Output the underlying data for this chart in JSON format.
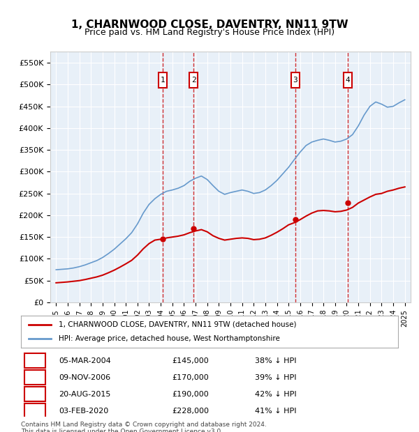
{
  "title": "1, CHARNWOOD CLOSE, DAVENTRY, NN11 9TW",
  "subtitle": "Price paid vs. HM Land Registry's House Price Index (HPI)",
  "ylabel": "",
  "background_color": "#ffffff",
  "plot_bg_color": "#e8f0f8",
  "grid_color": "#ffffff",
  "hpi_color": "#6699cc",
  "price_color": "#cc0000",
  "ylim": [
    0,
    575000
  ],
  "yticks": [
    0,
    50000,
    100000,
    150000,
    200000,
    250000,
    300000,
    350000,
    400000,
    450000,
    500000,
    550000
  ],
  "ytick_labels": [
    "£0",
    "£50K",
    "£100K",
    "£150K",
    "£200K",
    "£250K",
    "£300K",
    "£350K",
    "£400K",
    "£450K",
    "£500K",
    "£550K"
  ],
  "sale_dates": [
    "2004-03-05",
    "2006-11-09",
    "2015-08-20",
    "2020-02-03"
  ],
  "sale_prices": [
    145000,
    170000,
    190000,
    228000
  ],
  "sale_labels": [
    "1",
    "2",
    "3",
    "4"
  ],
  "sale_info": [
    {
      "label": "1",
      "date": "05-MAR-2004",
      "price": "£145,000",
      "pct": "38% ↓ HPI"
    },
    {
      "label": "2",
      "date": "09-NOV-2006",
      "price": "£170,000",
      "pct": "39% ↓ HPI"
    },
    {
      "label": "3",
      "date": "20-AUG-2015",
      "price": "£190,000",
      "pct": "42% ↓ HPI"
    },
    {
      "label": "4",
      "date": "03-FEB-2020",
      "price": "£228,000",
      "pct": "41% ↓ HPI"
    }
  ],
  "legend_line1": "1, CHARNWOOD CLOSE, DAVENTRY, NN11 9TW (detached house)",
  "legend_line2": "HPI: Average price, detached house, West Northamptonshire",
  "footnote": "Contains HM Land Registry data © Crown copyright and database right 2024.\nThis data is licensed under the Open Government Licence v3.0.",
  "xlim_start": 1994.5,
  "xlim_end": 2025.5
}
